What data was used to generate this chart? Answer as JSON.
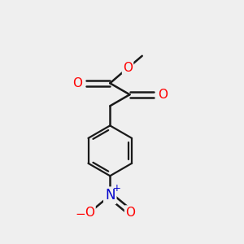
{
  "background_color": "#efefef",
  "bond_color": "#1a1a1a",
  "atom_colors": {
    "O": "#ff0000",
    "N": "#0000cc",
    "C": "#1a1a1a"
  },
  "figsize": [
    3.0,
    3.0
  ],
  "dpi": 100
}
